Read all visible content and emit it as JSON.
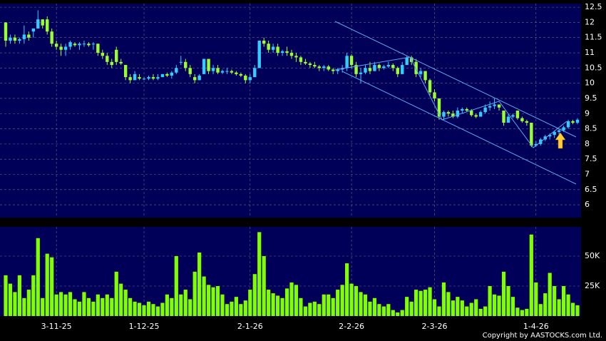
{
  "chart_data": {
    "type": "candlestick",
    "up_color": "#33ccff",
    "down_color": "#99ff33",
    "grid": true,
    "ylim": [
      5.58,
      12.62
    ],
    "yticks": [
      6,
      6.5,
      7,
      7.5,
      8,
      8.5,
      9,
      9.5,
      10,
      10.5,
      11,
      11.5,
      12,
      12.5
    ],
    "categories": [
      null,
      null,
      null,
      null,
      null,
      null,
      null,
      null,
      null,
      null,
      null,
      "3-11-25",
      null,
      null,
      null,
      null,
      null,
      null,
      null,
      null,
      null,
      null,
      null,
      null,
      null,
      null,
      null,
      null,
      null,
      null,
      "1-12-25",
      null,
      null,
      null,
      null,
      null,
      null,
      null,
      null,
      null,
      null,
      null,
      null,
      null,
      null,
      null,
      null,
      null,
      null,
      null,
      null,
      null,
      null,
      "2-1-26",
      null,
      null,
      null,
      null,
      null,
      null,
      null,
      null,
      null,
      null,
      null,
      null,
      null,
      null,
      null,
      null,
      null,
      null,
      null,
      null,
      null,
      "2-2-26",
      null,
      null,
      null,
      null,
      null,
      null,
      null,
      null,
      null,
      null,
      null,
      null,
      null,
      null,
      null,
      null,
      null,
      "2-3-26",
      null,
      null,
      null,
      null,
      null,
      null,
      null,
      null,
      null,
      null,
      null,
      null,
      null,
      null,
      null,
      null,
      null,
      null,
      null,
      null,
      null,
      "1-4-26",
      null,
      null,
      null,
      null,
      null,
      null,
      null,
      null,
      null
    ],
    "candles": [
      [
        12.0,
        12.0,
        11.2,
        11.4
      ],
      [
        11.4,
        11.6,
        11.3,
        11.5
      ],
      [
        11.5,
        11.6,
        11.3,
        11.4
      ],
      [
        11.4,
        11.5,
        11.3,
        11.45
      ],
      [
        11.45,
        11.9,
        11.3,
        11.6
      ],
      [
        11.6,
        11.7,
        11.4,
        11.5
      ],
      [
        11.7,
        11.8,
        11.5,
        11.8
      ],
      [
        11.8,
        12.4,
        11.8,
        12.1
      ],
      [
        12.1,
        12.1,
        11.8,
        11.9
      ],
      [
        12.1,
        12.2,
        11.6,
        11.7
      ],
      [
        11.7,
        11.8,
        11.2,
        11.3
      ],
      [
        11.3,
        11.4,
        11.1,
        11.2
      ],
      [
        11.2,
        11.3,
        10.9,
        11.1
      ],
      [
        11.1,
        11.3,
        10.9,
        11.2
      ],
      [
        11.2,
        11.4,
        11.1,
        11.35
      ],
      [
        11.3,
        11.35,
        11.2,
        11.25
      ],
      [
        11.25,
        11.35,
        11.1,
        11.3
      ],
      [
        11.3,
        11.4,
        11.2,
        11.3
      ],
      [
        11.3,
        11.35,
        11.2,
        11.25
      ],
      [
        11.3,
        11.35,
        11.1,
        11.3
      ],
      [
        11.3,
        11.3,
        10.9,
        11.0
      ],
      [
        11.0,
        11.1,
        10.8,
        10.9
      ],
      [
        10.9,
        11.0,
        10.6,
        10.7
      ],
      [
        10.7,
        10.8,
        10.5,
        10.6
      ],
      [
        11.1,
        11.2,
        10.6,
        10.7
      ],
      [
        10.7,
        10.8,
        10.6,
        10.65
      ],
      [
        10.6,
        10.6,
        10.1,
        10.2
      ],
      [
        10.2,
        10.3,
        10.0,
        10.1
      ],
      [
        10.1,
        10.4,
        10.1,
        10.3
      ],
      [
        10.2,
        10.3,
        10.1,
        10.15
      ],
      [
        10.15,
        10.2,
        10.1,
        10.15
      ],
      [
        10.15,
        10.25,
        10.1,
        10.2
      ],
      [
        10.2,
        10.3,
        10.1,
        10.15
      ],
      [
        10.15,
        10.3,
        10.1,
        10.2
      ],
      [
        10.2,
        10.3,
        10.2,
        10.3
      ],
      [
        10.3,
        10.35,
        10.2,
        10.25
      ],
      [
        10.25,
        10.4,
        10.15,
        10.35
      ],
      [
        10.35,
        10.6,
        10.3,
        10.5
      ],
      [
        10.7,
        10.9,
        10.6,
        10.7
      ],
      [
        10.7,
        10.8,
        10.4,
        10.5
      ],
      [
        10.5,
        10.6,
        10.2,
        10.3
      ],
      [
        10.2,
        10.3,
        10.0,
        10.1
      ],
      [
        10.1,
        10.3,
        10.1,
        10.25
      ],
      [
        10.3,
        10.8,
        10.3,
        10.8
      ],
      [
        10.8,
        10.8,
        10.3,
        10.4
      ],
      [
        10.4,
        10.6,
        10.3,
        10.5
      ],
      [
        10.5,
        10.6,
        10.3,
        10.35
      ],
      [
        10.35,
        10.45,
        10.3,
        10.4
      ],
      [
        10.4,
        10.5,
        10.3,
        10.4
      ],
      [
        10.4,
        10.45,
        10.3,
        10.35
      ],
      [
        10.35,
        10.4,
        10.25,
        10.3
      ],
      [
        10.3,
        10.35,
        10.2,
        10.25
      ],
      [
        10.25,
        10.3,
        10.0,
        10.1
      ],
      [
        10.1,
        10.3,
        10.0,
        10.2
      ],
      [
        10.2,
        10.6,
        10.2,
        10.5
      ],
      [
        10.5,
        11.4,
        10.5,
        11.4
      ],
      [
        11.4,
        11.5,
        11.2,
        11.3
      ],
      [
        11.3,
        11.4,
        11.0,
        11.1
      ],
      [
        11.1,
        11.3,
        11.0,
        11.2
      ],
      [
        11.2,
        11.3,
        10.9,
        11.0
      ],
      [
        11.0,
        11.1,
        10.9,
        11.05
      ],
      [
        11.05,
        11.2,
        10.9,
        11.0
      ],
      [
        11.0,
        11.1,
        10.8,
        10.9
      ],
      [
        10.9,
        11.0,
        10.7,
        10.85
      ],
      [
        10.85,
        10.9,
        10.6,
        10.7
      ],
      [
        10.7,
        10.8,
        10.6,
        10.65
      ],
      [
        10.65,
        10.7,
        10.5,
        10.6
      ],
      [
        10.6,
        10.7,
        10.5,
        10.55
      ],
      [
        10.55,
        10.6,
        10.4,
        10.5
      ],
      [
        10.5,
        10.6,
        10.4,
        10.55
      ],
      [
        10.55,
        10.6,
        10.4,
        10.45
      ],
      [
        10.45,
        10.5,
        10.3,
        10.4
      ],
      [
        10.4,
        10.5,
        10.3,
        10.45
      ],
      [
        10.45,
        10.6,
        10.35,
        10.5
      ],
      [
        10.5,
        11.0,
        10.4,
        10.9
      ],
      [
        10.9,
        10.95,
        10.5,
        10.6
      ],
      [
        10.6,
        10.7,
        10.2,
        10.3
      ],
      [
        10.3,
        10.5,
        10.0,
        10.35
      ],
      [
        10.35,
        10.6,
        10.3,
        10.5
      ],
      [
        10.5,
        10.7,
        10.3,
        10.4
      ],
      [
        10.4,
        10.7,
        10.4,
        10.6
      ],
      [
        10.6,
        10.65,
        10.4,
        10.5
      ],
      [
        10.5,
        10.6,
        10.45,
        10.55
      ],
      [
        10.55,
        10.7,
        10.5,
        10.6
      ],
      [
        10.6,
        10.65,
        10.4,
        10.5
      ],
      [
        10.5,
        10.55,
        10.2,
        10.3
      ],
      [
        10.3,
        10.7,
        10.3,
        10.6
      ],
      [
        10.6,
        10.9,
        10.6,
        10.85
      ],
      [
        10.85,
        10.9,
        10.6,
        10.7
      ],
      [
        10.7,
        10.8,
        10.2,
        10.3
      ],
      [
        10.3,
        10.5,
        10.2,
        10.4
      ],
      [
        10.4,
        10.4,
        10.0,
        10.1
      ],
      [
        10.1,
        10.15,
        9.6,
        9.7
      ],
      [
        9.7,
        9.8,
        9.4,
        9.5
      ],
      [
        9.5,
        9.5,
        8.8,
        8.9
      ],
      [
        8.9,
        9.1,
        8.8,
        9.05
      ],
      [
        9.05,
        9.1,
        8.9,
        9.0
      ],
      [
        9.0,
        9.1,
        8.85,
        8.9
      ],
      [
        8.9,
        9.2,
        8.85,
        9.1
      ],
      [
        9.1,
        9.2,
        9.0,
        9.15
      ],
      [
        9.15,
        9.2,
        9.05,
        9.1
      ],
      [
        9.1,
        9.15,
        8.9,
        8.95
      ],
      [
        8.95,
        9.0,
        8.85,
        8.9
      ],
      [
        8.9,
        9.1,
        8.9,
        9.05
      ],
      [
        9.05,
        9.3,
        9.0,
        9.2
      ],
      [
        9.2,
        9.4,
        9.1,
        9.25
      ],
      [
        9.25,
        9.5,
        9.15,
        9.3
      ],
      [
        9.3,
        9.3,
        9.1,
        9.2
      ],
      [
        9.1,
        9.1,
        8.6,
        8.7
      ],
      [
        8.7,
        9.0,
        8.7,
        8.9
      ],
      [
        8.9,
        9.0,
        8.85,
        8.95
      ],
      [
        9.1,
        9.1,
        8.8,
        8.85
      ],
      [
        8.85,
        8.9,
        8.7,
        8.75
      ],
      [
        8.75,
        8.8,
        8.6,
        8.7
      ],
      [
        8.7,
        8.7,
        7.9,
        7.95
      ],
      [
        7.95,
        8.1,
        7.9,
        8.0
      ],
      [
        8.0,
        8.2,
        7.95,
        8.15
      ],
      [
        8.15,
        8.3,
        8.1,
        8.25
      ],
      [
        8.25,
        8.35,
        8.15,
        8.3
      ],
      [
        8.3,
        8.45,
        8.2,
        8.4
      ],
      [
        8.4,
        8.5,
        8.3,
        8.45
      ],
      [
        8.45,
        8.6,
        8.4,
        8.55
      ],
      [
        8.55,
        8.8,
        8.5,
        8.75
      ],
      [
        8.75,
        8.8,
        8.65,
        8.7
      ],
      [
        8.7,
        8.85,
        8.65,
        8.8
      ]
    ],
    "volume": {
      "color": "#80ff00",
      "ylim": [
        0,
        74400
      ],
      "yticks": [
        {
          "value": 25000,
          "label": "25K"
        },
        {
          "value": 50000,
          "label": "50K"
        }
      ],
      "values": [
        34000,
        27000,
        20000,
        34000,
        15000,
        22000,
        34000,
        65000,
        15000,
        52000,
        49000,
        18000,
        20000,
        18000,
        20000,
        14000,
        12000,
        20000,
        15000,
        12000,
        18000,
        15000,
        18000,
        15000,
        37000,
        27000,
        22000,
        15000,
        12000,
        11000,
        9000,
        12000,
        10000,
        8000,
        11000,
        18000,
        15000,
        50000,
        18000,
        22000,
        14000,
        37000,
        53000,
        33000,
        26000,
        24000,
        25000,
        18000,
        10000,
        12000,
        16000,
        10000,
        13000,
        22000,
        35000,
        70000,
        50000,
        22000,
        19000,
        17000,
        15000,
        23000,
        28000,
        26000,
        15000,
        8000,
        11000,
        12000,
        10000,
        18000,
        18000,
        15000,
        22000,
        26000,
        44000,
        27000,
        25000,
        20000,
        18000,
        12000,
        15000,
        10000,
        8000,
        10000,
        5000,
        3000,
        5000,
        16000,
        12000,
        22000,
        21000,
        22000,
        24000,
        14000,
        8000,
        28000,
        20000,
        13000,
        16000,
        13000,
        8000,
        11000,
        14000,
        6000,
        8000,
        25000,
        18000,
        17000,
        37000,
        25000,
        16000,
        7000,
        5000,
        6000,
        68000,
        28000,
        10000,
        19000,
        36000,
        25000,
        14000,
        25000,
        18000,
        11000,
        9000
      ]
    },
    "copyright": "Copyright by AASTOCKS.com Ltd."
  }
}
